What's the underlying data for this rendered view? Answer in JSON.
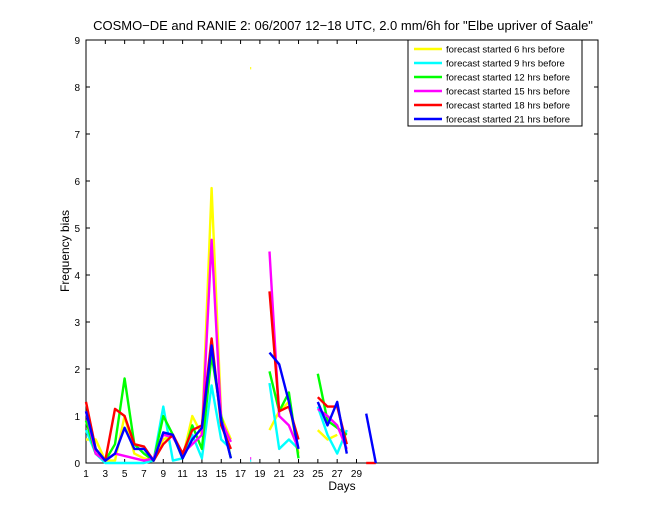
{
  "chart_data": {
    "type": "line",
    "title": "COSMO−DE and RANIE 2: 06/2007 12−18 UTC, 2.0 mm/6h for \"Elbe upriver of Saale\"",
    "xlabel": "Days",
    "ylabel": "Frequency bias",
    "xlim": [
      1,
      54
    ],
    "ylim": [
      0,
      9
    ],
    "xticks": [
      1,
      3,
      5,
      7,
      9,
      11,
      13,
      15,
      17,
      19,
      21,
      23,
      25,
      27,
      29
    ],
    "yticks": [
      0,
      1,
      2,
      3,
      4,
      5,
      6,
      7,
      8,
      9
    ],
    "legend_position": "top-right",
    "grid": false,
    "series": [
      {
        "name": "forecast started 6 hrs before",
        "color": "#ffff00",
        "segments": [
          [
            [
              1,
              0.5
            ],
            [
              2,
              0.5
            ],
            [
              3,
              0.05
            ],
            [
              4,
              0.05
            ],
            [
              5,
              1.0
            ],
            [
              6,
              0.2
            ],
            [
              7,
              0.1
            ],
            [
              8,
              0.05
            ],
            [
              9,
              0.5
            ],
            [
              10,
              0.6
            ],
            [
              11,
              0.1
            ],
            [
              12,
              1.0
            ],
            [
              13,
              0.6
            ],
            [
              14,
              5.85
            ],
            [
              15,
              1.0
            ],
            [
              16,
              0.5
            ]
          ],
          [
            [
              18,
              8.4
            ],
            [
              18.1,
              8.4
            ]
          ],
          [
            [
              20,
              0.7
            ],
            [
              21,
              1.1
            ],
            [
              22,
              1.3
            ],
            [
              23,
              0.2
            ]
          ],
          [
            [
              25,
              0.7
            ],
            [
              26,
              0.5
            ],
            [
              27,
              0.6
            ]
          ]
        ]
      },
      {
        "name": "forecast started 9 hrs before",
        "color": "#00ffff",
        "segments": [
          [
            [
              1,
              0.7
            ],
            [
              2,
              0.2
            ],
            [
              3,
              0.0
            ],
            [
              4,
              0.0
            ],
            [
              5,
              0.0
            ],
            [
              6,
              0.0
            ],
            [
              7,
              0.0
            ],
            [
              8,
              0.05
            ],
            [
              9,
              1.2
            ],
            [
              10,
              0.05
            ],
            [
              11,
              0.1
            ],
            [
              12,
              0.6
            ],
            [
              13,
              0.1
            ],
            [
              14,
              1.65
            ],
            [
              15,
              0.5
            ],
            [
              16,
              0.3
            ]
          ],
          [
            [
              18,
              0.05
            ],
            [
              18.1,
              0.05
            ]
          ],
          [
            [
              20,
              1.7
            ],
            [
              21,
              0.3
            ],
            [
              22,
              0.5
            ],
            [
              23,
              0.3
            ]
          ],
          [
            [
              25,
              1.2
            ],
            [
              26,
              0.6
            ],
            [
              27,
              0.2
            ],
            [
              28,
              0.7
            ]
          ]
        ]
      },
      {
        "name": "forecast started 12 hrs before",
        "color": "#00ff00",
        "segments": [
          [
            [
              1,
              0.9
            ],
            [
              2,
              0.2
            ],
            [
              3,
              0.05
            ],
            [
              4,
              0.4
            ],
            [
              5,
              1.8
            ],
            [
              6,
              0.4
            ],
            [
              7,
              0.2
            ],
            [
              8,
              0.05
            ],
            [
              9,
              1.0
            ],
            [
              10,
              0.6
            ],
            [
              11,
              0.1
            ],
            [
              12,
              0.8
            ],
            [
              13,
              0.3
            ],
            [
              14,
              2.3
            ],
            [
              15,
              1.0
            ],
            [
              16,
              0.1
            ]
          ],
          [
            [
              20,
              1.95
            ],
            [
              21,
              1.1
            ],
            [
              22,
              1.5
            ],
            [
              23,
              0.1
            ]
          ],
          [
            [
              25,
              1.9
            ],
            [
              26,
              0.9
            ],
            [
              27,
              0.75
            ],
            [
              28,
              0.6
            ]
          ]
        ]
      },
      {
        "name": "forecast started 15 hrs before",
        "color": "#ff00ff",
        "segments": [
          [
            [
              1,
              1.1
            ],
            [
              2,
              0.2
            ],
            [
              3,
              0.05
            ],
            [
              4,
              0.2
            ],
            [
              5,
              0.15
            ],
            [
              6,
              0.1
            ],
            [
              7,
              0.05
            ],
            [
              8,
              0.1
            ],
            [
              9,
              0.6
            ],
            [
              10,
              0.55
            ],
            [
              11,
              0.2
            ],
            [
              12,
              0.4
            ],
            [
              13,
              0.6
            ],
            [
              14,
              4.75
            ],
            [
              15,
              0.9
            ],
            [
              16,
              0.45
            ]
          ],
          [
            [
              18,
              0.1
            ],
            [
              18.1,
              0.1
            ]
          ],
          [
            [
              20,
              4.5
            ],
            [
              21,
              1.0
            ],
            [
              22,
              0.8
            ],
            [
              23,
              0.3
            ]
          ],
          [
            [
              25,
              1.15
            ],
            [
              26,
              1.0
            ],
            [
              27,
              0.8
            ],
            [
              28,
              0.3
            ]
          ]
        ]
      },
      {
        "name": "forecast started 18 hrs before",
        "color": "#ff0000",
        "segments": [
          [
            [
              1,
              1.3
            ],
            [
              2,
              0.3
            ],
            [
              3,
              0.05
            ],
            [
              4,
              1.15
            ],
            [
              5,
              1.0
            ],
            [
              6,
              0.4
            ],
            [
              7,
              0.35
            ],
            [
              8,
              0.05
            ],
            [
              9,
              0.4
            ],
            [
              10,
              0.6
            ],
            [
              11,
              0.2
            ],
            [
              12,
              0.7
            ],
            [
              13,
              0.8
            ],
            [
              14,
              2.65
            ],
            [
              15,
              0.8
            ],
            [
              16,
              0.3
            ]
          ],
          [
            [
              20,
              3.65
            ],
            [
              21,
              1.1
            ],
            [
              22,
              1.2
            ],
            [
              23,
              0.5
            ]
          ],
          [
            [
              25,
              1.4
            ],
            [
              26,
              1.2
            ],
            [
              27,
              1.2
            ],
            [
              28,
              0.4
            ]
          ],
          [
            [
              30,
              0.0
            ],
            [
              31,
              0.0
            ]
          ]
        ]
      },
      {
        "name": "forecast started 21 hrs before",
        "color": "#0000ff",
        "segments": [
          [
            [
              1,
              1.1
            ],
            [
              2,
              0.3
            ],
            [
              3,
              0.05
            ],
            [
              4,
              0.2
            ],
            [
              5,
              0.75
            ],
            [
              6,
              0.3
            ],
            [
              7,
              0.3
            ],
            [
              8,
              0.05
            ],
            [
              9,
              0.65
            ],
            [
              10,
              0.6
            ],
            [
              11,
              0.1
            ],
            [
              12,
              0.5
            ],
            [
              13,
              0.75
            ],
            [
              14,
              2.5
            ],
            [
              15,
              0.9
            ],
            [
              16,
              0.1
            ]
          ],
          [
            [
              20,
              2.35
            ],
            [
              21,
              2.1
            ],
            [
              22,
              1.3
            ],
            [
              23,
              0.3
            ]
          ],
          [
            [
              25,
              1.3
            ],
            [
              26,
              0.8
            ],
            [
              27,
              1.3
            ],
            [
              28,
              0.2
            ]
          ],
          [
            [
              30,
              1.05
            ],
            [
              31,
              0.0
            ]
          ]
        ]
      }
    ]
  }
}
